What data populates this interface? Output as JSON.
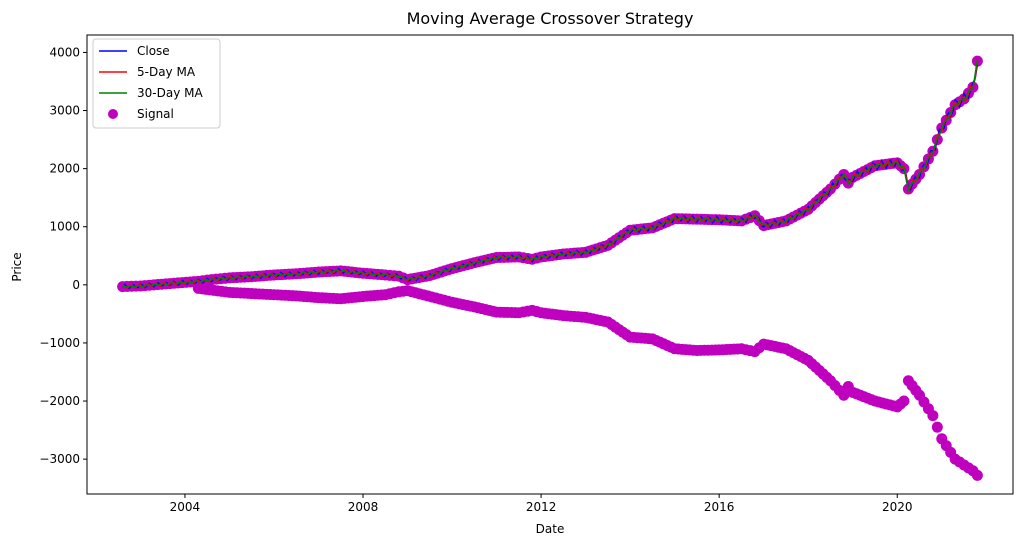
{
  "chart_data": {
    "type": "line",
    "title": "Moving Average Crossover Strategy",
    "xlabel": "Date",
    "ylabel": "Price",
    "xlim": [
      2001.8,
      2022.6
    ],
    "ylim": [
      -3600,
      4300
    ],
    "x_ticks": [
      2004,
      2008,
      2012,
      2016,
      2020
    ],
    "y_ticks": [
      -3000,
      -2000,
      -1000,
      0,
      1000,
      2000,
      3000,
      4000
    ],
    "x_tick_labels": [
      "2004",
      "2008",
      "2012",
      "2016",
      "2020"
    ],
    "y_tick_labels": [
      "−3000",
      "−2000",
      "−1000",
      "0",
      "1000",
      "2000",
      "3000",
      "4000"
    ],
    "legend": {
      "position": "top-left",
      "entries": [
        "Close",
        "5-Day MA",
        "30-Day MA",
        "Signal"
      ]
    },
    "colors": {
      "close": "#0000ff",
      "ma5": "#ff0000",
      "ma30": "#008000",
      "signal": "#bf00bf"
    },
    "price_trend": {
      "x": [
        2002.6,
        2003.0,
        2003.3,
        2004.3,
        2004.6,
        2005.0,
        2005.5,
        2006.0,
        2006.5,
        2007.0,
        2007.5,
        2008.0,
        2008.5,
        2008.8,
        2009.0,
        2009.5,
        2010.0,
        2010.5,
        2011.0,
        2011.5,
        2011.8,
        2012.0,
        2012.5,
        2013.0,
        2013.5,
        2014.0,
        2014.5,
        2015.0,
        2015.5,
        2016.0,
        2016.5,
        2016.8,
        2017.0,
        2017.5,
        2018.0,
        2018.5,
        2018.8,
        2018.9,
        2019.0,
        2019.5,
        2020.0,
        2020.15,
        2020.25,
        2020.5,
        2020.8,
        2021.0,
        2021.3,
        2021.5,
        2021.7,
        2021.8
      ],
      "y": [
        -30,
        -20,
        0,
        60,
        90,
        120,
        140,
        170,
        190,
        220,
        240,
        200,
        170,
        150,
        90,
        160,
        280,
        380,
        470,
        480,
        440,
        480,
        530,
        560,
        680,
        940,
        980,
        1140,
        1130,
        1120,
        1100,
        1190,
        1020,
        1100,
        1300,
        1650,
        1900,
        1750,
        1850,
        2050,
        2100,
        2000,
        1650,
        1900,
        2300,
        2700,
        3100,
        3200,
        3400,
        3850
      ]
    },
    "signal_negative": {
      "x": [
        2004.3,
        2005.0,
        2005.5,
        2006.0,
        2006.5,
        2007.0,
        2007.5,
        2008.0,
        2008.5,
        2008.8,
        2009.0,
        2010.0,
        2010.5,
        2011.0,
        2011.5,
        2011.8,
        2012.0,
        2012.5,
        2013.0,
        2013.5,
        2014.0,
        2014.5,
        2015.0,
        2015.5,
        2016.0,
        2016.5,
        2016.8,
        2017.0,
        2017.5,
        2018.0,
        2018.5,
        2018.8,
        2018.9,
        2019.0,
        2019.5,
        2020.0,
        2020.15,
        2020.25,
        2020.5,
        2020.8,
        2021.0,
        2021.3,
        2021.5,
        2021.7,
        2021.8
      ],
      "y": [
        -60,
        -130,
        -150,
        -170,
        -190,
        -220,
        -240,
        -200,
        -170,
        -120,
        -100,
        -300,
        -380,
        -470,
        -480,
        -440,
        -480,
        -530,
        -560,
        -640,
        -900,
        -930,
        -1100,
        -1130,
        -1120,
        -1100,
        -1150,
        -1020,
        -1100,
        -1300,
        -1650,
        -1900,
        -1750,
        -1850,
        -2000,
        -2100,
        -2000,
        -1650,
        -1900,
        -2250,
        -2650,
        -3000,
        -3100,
        -3200,
        -3280
      ]
    }
  }
}
